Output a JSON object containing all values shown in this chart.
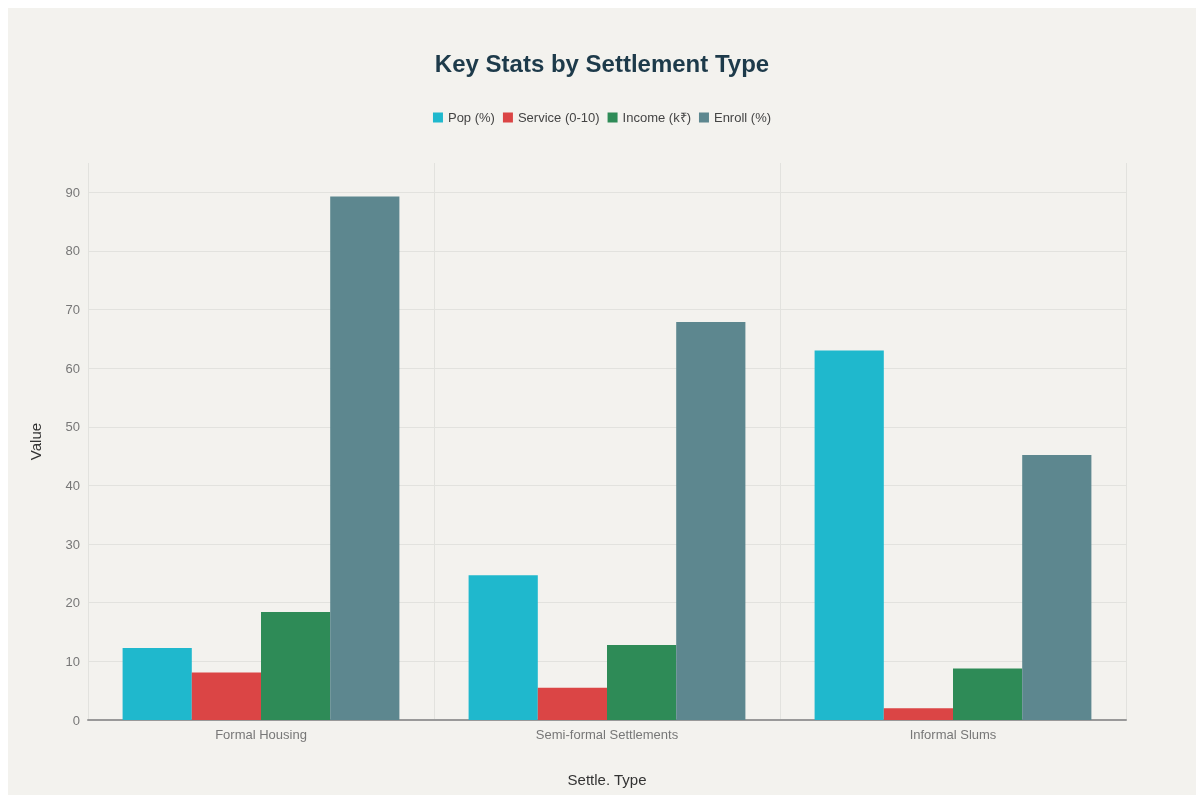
{
  "chart_data": {
    "type": "bar",
    "title": "Key Stats by Settlement Type",
    "xlabel": "Settle. Type",
    "ylabel": "Value",
    "categories": [
      "Formal Housing",
      "Semi-formal Settlements",
      "Informal Slums"
    ],
    "series": [
      {
        "name": "Pop (%)",
        "color": "#1fb8cd",
        "values": [
          12.3,
          24.7,
          63.0
        ]
      },
      {
        "name": "Service (0-10)",
        "color": "#db4545",
        "values": [
          8.1,
          5.5,
          2.0
        ]
      },
      {
        "name": "Income (k₹)",
        "color": "#2e8b57",
        "values": [
          18.4,
          12.8,
          8.8
        ]
      },
      {
        "name": "Enroll (%)",
        "color": "#5d878f",
        "values": [
          89.3,
          67.9,
          45.2
        ]
      }
    ],
    "ylim": [
      0,
      95
    ],
    "yticks": [
      0,
      10,
      20,
      30,
      40,
      50,
      60,
      70,
      80,
      90
    ],
    "grid": true,
    "legend": "top"
  }
}
